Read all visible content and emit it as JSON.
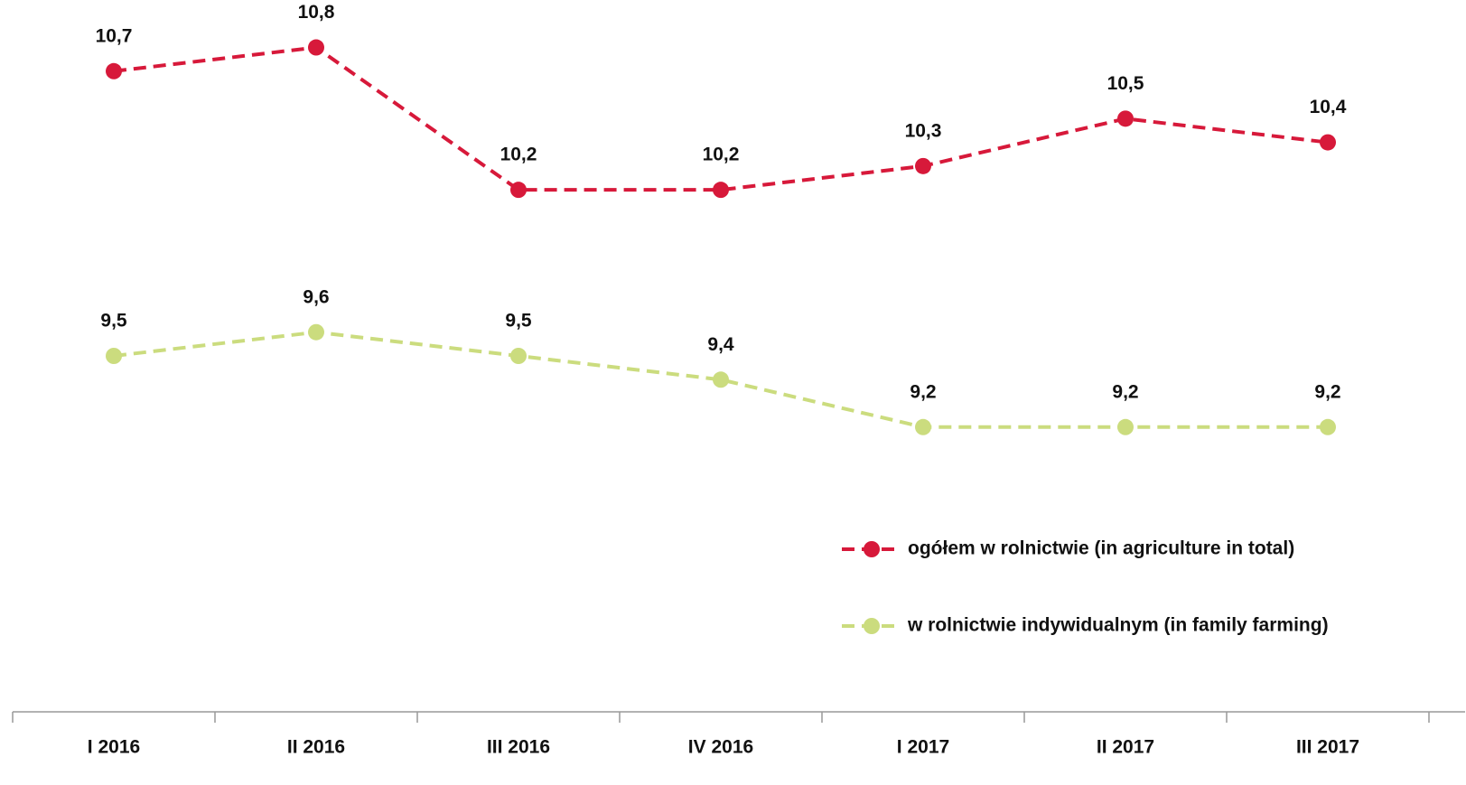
{
  "chart_data": {
    "type": "line",
    "categories": [
      "I 2016",
      "II 2016",
      "III 2016",
      "IV 2016",
      "I 2017",
      "II 2017",
      "III 2017"
    ],
    "series": [
      {
        "name": "ogółem w rolnictwie (in agriculture in total)",
        "color": "#d7193a",
        "values": [
          10.7,
          10.8,
          10.2,
          10.2,
          10.3,
          10.5,
          10.4
        ],
        "value_labels": [
          "10,7",
          "10,8",
          "10,2",
          "10,2",
          "10,3",
          "10,5",
          "10,4"
        ]
      },
      {
        "name": "w rolnictwie indywidualnym (in family farming)",
        "color": "#cbdc7e",
        "values": [
          9.5,
          9.6,
          9.5,
          9.4,
          9.2,
          9.2,
          9.2
        ],
        "value_labels": [
          "9,5",
          "9,6",
          "9,5",
          "9,4",
          "9,2",
          "9,2",
          "9,2"
        ]
      }
    ],
    "ylim": [
      8,
      11
    ],
    "legend": "right"
  }
}
